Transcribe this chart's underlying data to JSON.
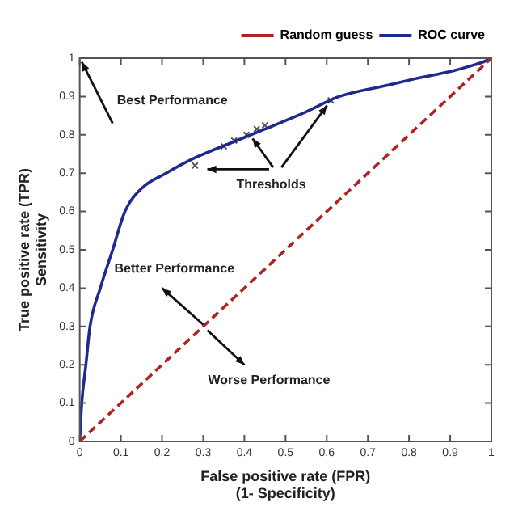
{
  "chart_data": {
    "type": "line",
    "xlabel": "False positive rate (FPR)\n(1- Specificity)",
    "ylabel": "True positive rate (TPR)\nSensitivity",
    "xlim": [
      0,
      1
    ],
    "ylim": [
      0,
      1
    ],
    "xticks": [
      0,
      0.1,
      0.2,
      0.3,
      0.4,
      0.5,
      0.6,
      0.7,
      0.8,
      0.9,
      1
    ],
    "yticks": [
      0,
      0.1,
      0.2,
      0.3,
      0.4,
      0.5,
      0.6,
      0.7,
      0.8,
      0.9,
      1
    ],
    "grid": false,
    "legend": "top right",
    "series": [
      {
        "name": "Random guess",
        "color": "#b22222",
        "line_style": "dashed",
        "marker": "none",
        "x": [
          0,
          1
        ],
        "values": [
          0,
          1
        ]
      },
      {
        "name": "ROC curve",
        "color": "#1f2a8f",
        "line_style": "solid",
        "marker": "none",
        "x": [
          0,
          0.005,
          0.015,
          0.025,
          0.05,
          0.08,
          0.11,
          0.15,
          0.21,
          0.28,
          0.37,
          0.45,
          0.55,
          0.63,
          0.75,
          0.83,
          0.9,
          0.95,
          0.98,
          1
        ],
        "values": [
          0,
          0.1,
          0.2,
          0.3,
          0.4,
          0.5,
          0.6,
          0.66,
          0.7,
          0.74,
          0.78,
          0.815,
          0.86,
          0.9,
          0.93,
          0.95,
          0.965,
          0.98,
          0.99,
          1
        ]
      },
      {
        "type": "scatter",
        "color": "#555555",
        "marker": "cross",
        "x": [
          0.28,
          0.35,
          0.375,
          0.405,
          0.43,
          0.45,
          0.61
        ],
        "values": [
          0.72,
          0.77,
          0.785,
          0.8,
          0.815,
          0.825,
          0.89
        ]
      }
    ],
    "annotations": [
      "Best Performance",
      {
        "text": "Thresholds",
        "x": 0.61,
        "y": 0.89
      },
      "Better Performance",
      "Worse Performance"
    ]
  }
}
